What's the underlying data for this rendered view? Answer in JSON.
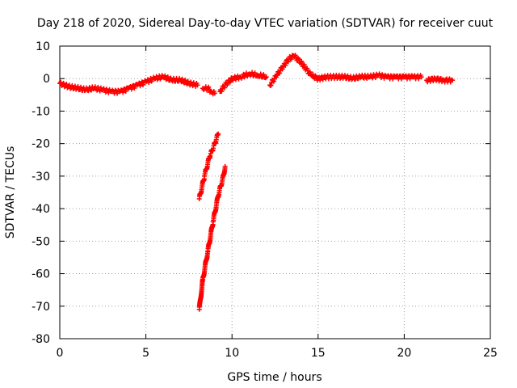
{
  "chart_data": {
    "type": "scatter",
    "title": "Day 218 of 2020, Sidereal Day-to-day VTEC variation (SDTVAR) for receiver cuut",
    "xlabel": "GPS time / hours",
    "ylabel": "SDTVAR / TECUs",
    "xlim": [
      0,
      25
    ],
    "ylim": [
      -80,
      10
    ],
    "xticks": [
      0,
      5,
      10,
      15,
      20,
      25
    ],
    "yticks": [
      10,
      0,
      -10,
      -20,
      -30,
      -40,
      -50,
      -60,
      -70,
      -80
    ],
    "grid": true,
    "marker": "+",
    "color": "#ff0000",
    "series": [
      {
        "name": "SDTVAR",
        "segments": [
          {
            "x": [
              0,
              0.5,
              1,
              1.5,
              2,
              2.5,
              3,
              3.5,
              4,
              4.5,
              5,
              5.5,
              6,
              6.5,
              7,
              7.5,
              8
            ],
            "y": [
              -1.5,
              -2.5,
              -3,
              -3.5,
              -3,
              -3.5,
              -4,
              -4,
              -3,
              -2,
              -1,
              0,
              0.5,
              -0.5,
              -0.5,
              -1.5,
              -2
            ]
          },
          {
            "x": [
              8.3,
              8.6,
              8.8,
              9
            ],
            "y": [
              -3,
              -3,
              -4,
              -4.5
            ]
          },
          {
            "x": [
              9.3,
              9.6,
              10,
              10.5,
              11,
              11.5,
              12
            ],
            "y": [
              -4,
              -2,
              0,
              0.5,
              1.5,
              1,
              0.5
            ]
          },
          {
            "x": [
              12.2,
              12.6,
              13,
              13.3,
              13.6,
              14,
              14.3,
              14.6,
              15
            ],
            "y": [
              -2,
              1,
              4,
              6,
              7,
              5,
              3,
              1,
              0
            ]
          },
          {
            "x": [
              15,
              15.5,
              16,
              16.5,
              17,
              17.5,
              18,
              18.5,
              19,
              19.5,
              20,
              20.5,
              21
            ],
            "y": [
              0,
              0.5,
              0.5,
              0.5,
              0,
              0.5,
              0.5,
              1,
              0.5,
              0.5,
              0.5,
              0.5,
              0.5
            ]
          },
          {
            "x": [
              21.3,
              21.8,
              22.3,
              22.8
            ],
            "y": [
              -0.5,
              0,
              -0.5,
              -0.5
            ]
          },
          {
            "x": [
              8.1,
              8.4,
              8.7,
              9,
              9.2
            ],
            "y": [
              -37,
              -30,
              -24,
              -20,
              -17
            ]
          },
          {
            "x": [
              8.1,
              8.3,
              8.6,
              8.9,
              9.2,
              9.5,
              9.6
            ],
            "y": [
              -71,
              -62,
              -53,
              -44,
              -36,
              -30,
              -27
            ]
          }
        ]
      }
    ]
  }
}
